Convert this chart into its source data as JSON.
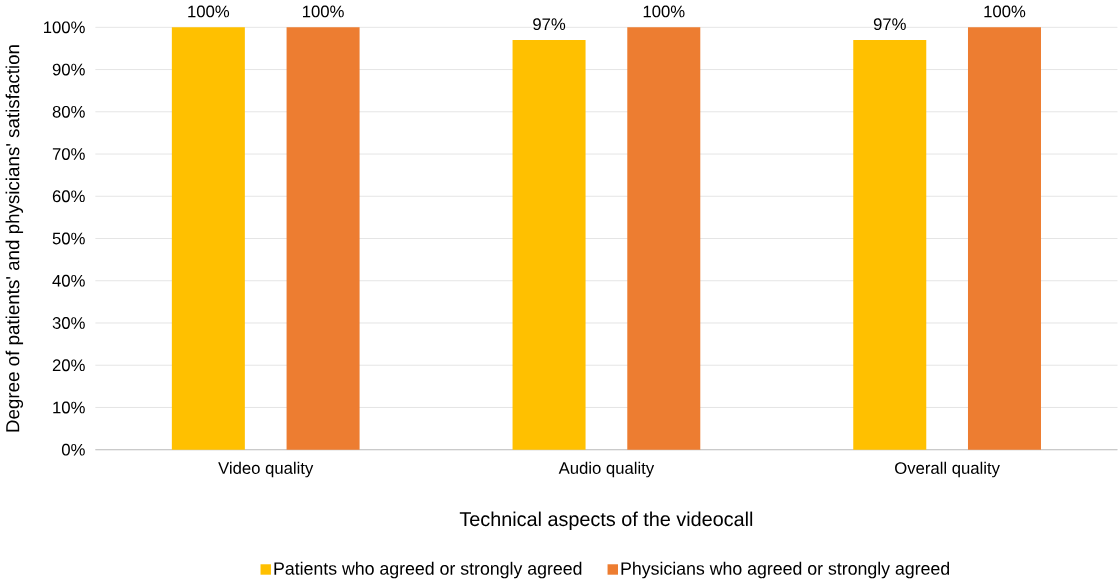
{
  "chart_data": {
    "type": "bar",
    "xlabel": "Technical aspects of the videocall",
    "ylabel": "Degree of patients' and physicians' satisfaction",
    "categories": [
      "Video quality",
      "Audio quality",
      "Overall quality"
    ],
    "series": [
      {
        "name": "Patients who agreed or strongly agreed",
        "color": "#ffc000",
        "values": [
          100,
          97,
          97
        ],
        "value_labels": [
          "100%",
          "97%",
          "97%"
        ]
      },
      {
        "name": "Physicians who agreed or strongly agreed",
        "color": "#ed7d31",
        "values": [
          100,
          100,
          100
        ],
        "value_labels": [
          "100%",
          "100%",
          "100%"
        ]
      }
    ],
    "ylim": [
      0,
      100
    ],
    "yticks": [
      {
        "value": 0,
        "label": "0%"
      },
      {
        "value": 10,
        "label": "10%"
      },
      {
        "value": 20,
        "label": "20%"
      },
      {
        "value": 30,
        "label": "30%"
      },
      {
        "value": 40,
        "label": "40%"
      },
      {
        "value": 50,
        "label": "50%"
      },
      {
        "value": 60,
        "label": "60%"
      },
      {
        "value": 70,
        "label": "70%"
      },
      {
        "value": 80,
        "label": "80%"
      },
      {
        "value": 90,
        "label": "90%"
      },
      {
        "value": 100,
        "label": "100%"
      }
    ],
    "grid": "y",
    "legend": "bottom"
  }
}
